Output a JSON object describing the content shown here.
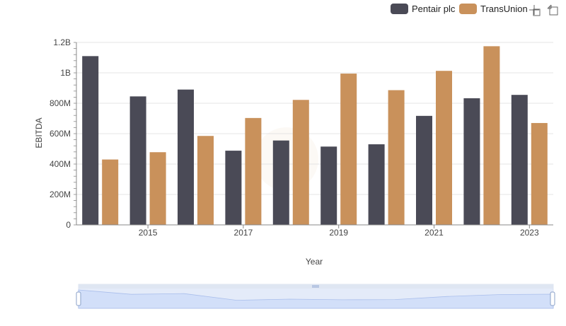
{
  "chart_data": {
    "type": "bar",
    "categories": [
      "2014",
      "2015",
      "2016",
      "2017",
      "2018",
      "2019",
      "2020",
      "2021",
      "2022",
      "2023"
    ],
    "x_tick_labels": [
      "2015",
      "2017",
      "2019",
      "2021",
      "2023"
    ],
    "series": [
      {
        "name": "Pentair plc",
        "color": "#4a4a56",
        "values": [
          1110000000,
          845000000,
          890000000,
          488000000,
          555000000,
          515000000,
          530000000,
          717000000,
          833000000,
          855000000
        ]
      },
      {
        "name": "TransUnion",
        "color": "#c9915b",
        "values": [
          430000000,
          478000000,
          585000000,
          703000000,
          822000000,
          995000000,
          886000000,
          1013000000,
          1175000000,
          670000000
        ]
      }
    ],
    "xlabel": "Year",
    "ylabel": "EBITDA",
    "ylim": [
      0,
      1200000000
    ],
    "y_ticks": [
      {
        "value": 0,
        "label": "0"
      },
      {
        "value": 200000000,
        "label": "200M"
      },
      {
        "value": 400000000,
        "label": "400M"
      },
      {
        "value": 600000000,
        "label": "600M"
      },
      {
        "value": 800000000,
        "label": "800M"
      },
      {
        "value": 1000000000,
        "label": "1B"
      },
      {
        "value": 1200000000,
        "label": "1.2B"
      }
    ],
    "grid": true,
    "legend_position": "top-right"
  },
  "toolbar": {
    "icons": [
      "zoom-icon",
      "reset-zoom-icon"
    ]
  }
}
